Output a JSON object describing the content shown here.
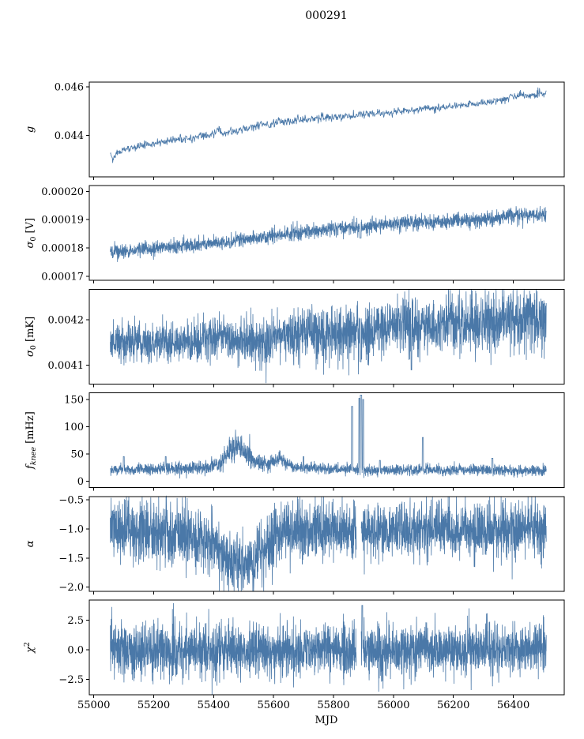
{
  "title": "000291",
  "xlabel": "MJD",
  "figure": {
    "line_color": "#4a78a8",
    "axis_color": "#000000",
    "text_color": "#000000",
    "background": "#ffffff"
  },
  "x_axis": {
    "range": [
      54985,
      56570
    ],
    "ticks": [
      55000,
      55200,
      55400,
      55600,
      55800,
      56000,
      56200,
      56400
    ],
    "tick_labels": [
      "55000",
      "55200",
      "55400",
      "55600",
      "55800",
      "56000",
      "56200",
      "56400"
    ]
  },
  "chart_data": [
    {
      "id": "g",
      "type": "line",
      "ylabel": {
        "pre": "g",
        "sub": "",
        "sup": "",
        "post": ""
      },
      "ylim": [
        0.0423,
        0.0462
      ],
      "yticks": [
        0.044,
        0.046
      ],
      "ytick_labels": [
        "0.044",
        "0.046"
      ],
      "x_start": 55055,
      "x_end": 56510,
      "n_points": 1100,
      "seed": 11,
      "trend": [
        [
          55055,
          0.04335
        ],
        [
          55063,
          0.04305
        ],
        [
          55075,
          0.04325
        ],
        [
          55090,
          0.04335
        ],
        [
          55110,
          0.04345
        ],
        [
          55140,
          0.04355
        ],
        [
          55170,
          0.04362
        ],
        [
          55200,
          0.04368
        ],
        [
          55240,
          0.04375
        ],
        [
          55280,
          0.04383
        ],
        [
          55320,
          0.0439
        ],
        [
          55360,
          0.04398
        ],
        [
          55400,
          0.04405
        ],
        [
          55415,
          0.0443
        ],
        [
          55430,
          0.04405
        ],
        [
          55460,
          0.04415
        ],
        [
          55500,
          0.04425
        ],
        [
          55540,
          0.04435
        ],
        [
          55570,
          0.04452
        ],
        [
          55590,
          0.04445
        ],
        [
          55620,
          0.0446
        ],
        [
          55650,
          0.04455
        ],
        [
          55680,
          0.04462
        ],
        [
          55720,
          0.04468
        ],
        [
          55760,
          0.04472
        ],
        [
          55800,
          0.04475
        ],
        [
          55840,
          0.0448
        ],
        [
          55880,
          0.04485
        ],
        [
          55920,
          0.0449
        ],
        [
          55960,
          0.04492
        ],
        [
          56000,
          0.04497
        ],
        [
          56040,
          0.04502
        ],
        [
          56080,
          0.04505
        ],
        [
          56120,
          0.0451
        ],
        [
          56160,
          0.04515
        ],
        [
          56200,
          0.0452
        ],
        [
          56240,
          0.04528
        ],
        [
          56280,
          0.04532
        ],
        [
          56320,
          0.04538
        ],
        [
          56360,
          0.04548
        ],
        [
          56400,
          0.0456
        ],
        [
          56440,
          0.04566
        ],
        [
          56480,
          0.0457
        ],
        [
          56510,
          0.04572
        ]
      ],
      "noise": [
        [
          55055,
          8e-05
        ],
        [
          56510,
          8e-05
        ]
      ],
      "spikes": [],
      "gaps": []
    },
    {
      "id": "sigma0-v",
      "type": "line",
      "ylabel": {
        "pre": "σ",
        "sub": "0",
        "sup": "",
        "post": " [V]"
      },
      "ylim": [
        0.0001685,
        0.000202
      ],
      "yticks": [
        0.00017,
        0.00018,
        0.00019,
        0.0002
      ],
      "ytick_labels": [
        "0.00017",
        "0.00018",
        "0.00019",
        "0.00020"
      ],
      "x_start": 55055,
      "x_end": 56510,
      "n_points": 2400,
      "seed": 22,
      "trend": [
        [
          55055,
          0.0001785
        ],
        [
          55150,
          0.0001795
        ],
        [
          55250,
          0.0001803
        ],
        [
          55350,
          0.0001812
        ],
        [
          55400,
          0.0001818
        ],
        [
          55450,
          0.0001823
        ],
        [
          55500,
          0.0001828
        ],
        [
          55600,
          0.0001845
        ],
        [
          55700,
          0.0001855
        ],
        [
          55800,
          0.000187
        ],
        [
          55900,
          0.0001875
        ],
        [
          56000,
          0.0001885
        ],
        [
          56100,
          0.000189
        ],
        [
          56200,
          0.0001895
        ],
        [
          56300,
          0.00019
        ],
        [
          56400,
          0.0001915
        ],
        [
          56510,
          0.0001918
        ]
      ],
      "noise": [
        [
          55055,
          1.2e-06
        ],
        [
          56510,
          1.4e-06
        ]
      ],
      "spikes": [
        {
          "x": 55455,
          "v": 0.00018,
          "w": 4
        },
        {
          "x": 55890,
          "v": 0.0001835,
          "w": 5
        }
      ],
      "gaps": []
    },
    {
      "id": "sigma0-mk",
      "type": "line",
      "ylabel": {
        "pre": "σ",
        "sub": "0",
        "sup": "",
        "post": " [mK]"
      },
      "ylim": [
        0.004059,
        0.004267
      ],
      "yticks": [
        0.0041,
        0.0042
      ],
      "ytick_labels": [
        "0.0041",
        "0.0042"
      ],
      "x_start": 55055,
      "x_end": 56510,
      "n_points": 2600,
      "seed": 33,
      "trend": [
        [
          55055,
          0.004153
        ],
        [
          55150,
          0.00415
        ],
        [
          55250,
          0.004148
        ],
        [
          55350,
          0.004152
        ],
        [
          55420,
          0.004165
        ],
        [
          55450,
          0.004158
        ],
        [
          55500,
          0.00415
        ],
        [
          55550,
          0.004148
        ],
        [
          55600,
          0.00416
        ],
        [
          55650,
          0.004165
        ],
        [
          55700,
          0.00417
        ],
        [
          55750,
          0.004168
        ],
        [
          55800,
          0.004172
        ],
        [
          55850,
          0.004175
        ],
        [
          55900,
          0.004168
        ],
        [
          55950,
          0.004178
        ],
        [
          56000,
          0.004182
        ],
        [
          56050,
          0.004185
        ],
        [
          56100,
          0.004188
        ],
        [
          56150,
          0.00419
        ],
        [
          56200,
          0.004193
        ],
        [
          56250,
          0.004195
        ],
        [
          56300,
          0.004198
        ],
        [
          56350,
          0.0042
        ],
        [
          56400,
          0.0042
        ],
        [
          56450,
          0.004202
        ],
        [
          56510,
          0.004202
        ]
      ],
      "noise": [
        [
          55055,
          2.2e-05
        ],
        [
          55500,
          2.4e-05
        ],
        [
          55800,
          3e-05
        ],
        [
          56100,
          3.3e-05
        ],
        [
          56510,
          3.3e-05
        ]
      ],
      "spikes": [
        {
          "x": 55890,
          "v": 0.004108,
          "w": 5
        },
        {
          "x": 56060,
          "v": 0.00409,
          "w": 3
        }
      ],
      "gaps": []
    },
    {
      "id": "fknee",
      "type": "line",
      "ylabel": {
        "pre": "f",
        "sub": "knee",
        "sup": "",
        "post": " [mHz]"
      },
      "ylim": [
        -12,
        162
      ],
      "yticks": [
        0,
        50,
        100,
        150
      ],
      "ytick_labels": [
        "0",
        "50",
        "100",
        "150"
      ],
      "x_start": 55055,
      "x_end": 56510,
      "n_points": 2600,
      "seed": 44,
      "trend": [
        [
          55055,
          20
        ],
        [
          55100,
          21
        ],
        [
          55200,
          22
        ],
        [
          55300,
          23
        ],
        [
          55380,
          24
        ],
        [
          55420,
          30
        ],
        [
          55440,
          45
        ],
        [
          55460,
          60
        ],
        [
          55480,
          62
        ],
        [
          55500,
          55
        ],
        [
          55520,
          48
        ],
        [
          55540,
          40
        ],
        [
          55560,
          32
        ],
        [
          55580,
          30
        ],
        [
          55600,
          38
        ],
        [
          55620,
          42
        ],
        [
          55640,
          32
        ],
        [
          55660,
          26
        ],
        [
          55700,
          24
        ],
        [
          55800,
          22
        ],
        [
          55900,
          20
        ],
        [
          56000,
          20
        ],
        [
          56100,
          20
        ],
        [
          56200,
          20
        ],
        [
          56300,
          20
        ],
        [
          56400,
          19
        ],
        [
          56510,
          19
        ]
      ],
      "noise": [
        [
          55055,
          5
        ],
        [
          55400,
          6
        ],
        [
          55440,
          12
        ],
        [
          55500,
          12
        ],
        [
          55560,
          8
        ],
        [
          55620,
          8
        ],
        [
          55660,
          5
        ],
        [
          56510,
          5
        ]
      ],
      "spikes": [
        {
          "x": 55100,
          "v": 45,
          "w": 3
        },
        {
          "x": 55240,
          "v": 45,
          "w": 3
        },
        {
          "x": 55700,
          "v": 45,
          "w": 3
        },
        {
          "x": 55862,
          "v": 137,
          "w": 4
        },
        {
          "x": 55886,
          "v": 152,
          "w": 3
        },
        {
          "x": 55892,
          "v": 158,
          "w": 5
        },
        {
          "x": 55899,
          "v": 150,
          "w": 3
        },
        {
          "x": 55955,
          "v": 38,
          "w": 3
        },
        {
          "x": 56098,
          "v": 80,
          "w": 4
        },
        {
          "x": 56330,
          "v": 42,
          "w": 4
        }
      ],
      "gaps": []
    },
    {
      "id": "alpha",
      "type": "line",
      "ylabel": {
        "pre": "α",
        "sub": "",
        "sup": "",
        "post": ""
      },
      "ylim": [
        -2.07,
        -0.44
      ],
      "yticks": [
        -0.5,
        -1.0,
        -1.5,
        -2.0
      ],
      "ytick_labels": [
        "−0.5",
        "−1.0",
        "−1.5",
        "−2.0"
      ],
      "x_start": 55055,
      "x_end": 56510,
      "n_points": 2800,
      "seed": 55,
      "trend": [
        [
          55055,
          -1.02
        ],
        [
          55200,
          -1.05
        ],
        [
          55300,
          -1.1
        ],
        [
          55350,
          -1.15
        ],
        [
          55400,
          -1.2
        ],
        [
          55430,
          -1.45
        ],
        [
          55460,
          -1.55
        ],
        [
          55500,
          -1.6
        ],
        [
          55540,
          -1.55
        ],
        [
          55570,
          -1.4
        ],
        [
          55600,
          -1.15
        ],
        [
          55650,
          -1.05
        ],
        [
          55700,
          -1.02
        ],
        [
          56510,
          -1.0
        ]
      ],
      "noise": [
        [
          55055,
          0.24
        ],
        [
          55250,
          0.28
        ],
        [
          55320,
          0.3
        ],
        [
          55400,
          0.26
        ],
        [
          55450,
          0.24
        ],
        [
          55600,
          0.26
        ],
        [
          55700,
          0.24
        ],
        [
          56510,
          0.24
        ]
      ],
      "spikes": [],
      "gaps": [
        [
          55876,
          55892
        ]
      ]
    },
    {
      "id": "chi2",
      "type": "line",
      "ylabel": {
        "pre": "χ",
        "sub": "",
        "sup": "2",
        "post": ""
      },
      "ylim": [
        -3.8,
        4.2
      ],
      "yticks": [
        -2.5,
        0.0,
        2.5
      ],
      "ytick_labels": [
        "−2.5",
        "0.0",
        "2.5"
      ],
      "x_start": 55055,
      "x_end": 56510,
      "n_points": 2800,
      "seed": 66,
      "trend": [
        [
          55055,
          0
        ],
        [
          56510,
          0
        ]
      ],
      "noise": [
        [
          55055,
          1.05
        ],
        [
          55400,
          1.1
        ],
        [
          55800,
          1.05
        ],
        [
          56510,
          1.05
        ]
      ],
      "spikes": [
        {
          "x": 55896,
          "v": 3.75,
          "w": 3
        }
      ],
      "gaps": [
        [
          55876,
          55892
        ]
      ]
    }
  ]
}
